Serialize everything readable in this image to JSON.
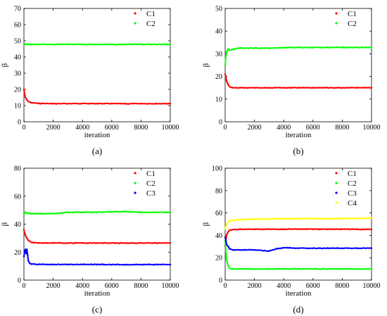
{
  "chart_data": [
    {
      "type": "scatter",
      "caption": "(a)",
      "xlabel": "iteration",
      "ylabel": "β",
      "xlim": [
        0,
        10000
      ],
      "ylim": [
        0,
        70
      ],
      "xticks": [
        0,
        2000,
        4000,
        6000,
        8000,
        10000
      ],
      "yticks": [
        0,
        10,
        20,
        30,
        40,
        50,
        60,
        70
      ],
      "grid": false,
      "legend_position": "top-right",
      "series": [
        {
          "name": "C1",
          "color": "#ff0000",
          "x": [
            0,
            50,
            100,
            200,
            300,
            500,
            1000,
            2000,
            3000,
            4000,
            5000,
            6000,
            7000,
            8000,
            9000,
            10000
          ],
          "y": [
            20,
            17,
            15,
            13.5,
            12.5,
            11.8,
            11.3,
            11.2,
            11.2,
            11.3,
            11.2,
            11.2,
            11.1,
            11.2,
            11.2,
            11.2
          ]
        },
        {
          "name": "C2",
          "color": "#00ff00",
          "x": [
            0,
            50,
            100,
            200,
            500,
            1000,
            2000,
            3000,
            4000,
            5000,
            6000,
            7000,
            8000,
            9000,
            10000
          ],
          "y": [
            47.5,
            47.8,
            48,
            47.8,
            47.7,
            47.8,
            47.8,
            47.9,
            47.8,
            47.8,
            47.8,
            47.8,
            47.8,
            47.8,
            47.8
          ]
        }
      ]
    },
    {
      "type": "scatter",
      "caption": "(b)",
      "xlabel": "iteration",
      "ylabel": "β",
      "xlim": [
        0,
        10000
      ],
      "ylim": [
        0,
        50
      ],
      "xticks": [
        0,
        2000,
        4000,
        6000,
        8000,
        10000
      ],
      "yticks": [
        0,
        10,
        20,
        30,
        40,
        50
      ],
      "grid": false,
      "legend_position": "top-right",
      "series": [
        {
          "name": "C1",
          "color": "#ff0000",
          "x": [
            0,
            50,
            100,
            200,
            300,
            500,
            1000,
            2000,
            3000,
            4000,
            5000,
            6000,
            7000,
            8000,
            9000,
            10000
          ],
          "y": [
            21,
            19.5,
            18,
            16.5,
            15.5,
            15,
            15,
            15,
            15,
            15,
            15,
            15,
            15,
            15,
            15,
            15
          ]
        },
        {
          "name": "C2",
          "color": "#00ff00",
          "x": [
            0,
            50,
            100,
            200,
            300,
            500,
            1000,
            2000,
            3000,
            4000,
            5000,
            6000,
            7000,
            8000,
            9000,
            10000
          ],
          "y": [
            25,
            29,
            31,
            32,
            31.5,
            32,
            32.5,
            32.5,
            32.5,
            32.7,
            32.8,
            32.8,
            32.8,
            32.8,
            32.8,
            32.8
          ]
        }
      ]
    },
    {
      "type": "scatter",
      "caption": "(c)",
      "xlabel": "iteration",
      "ylabel": "β",
      "xlim": [
        0,
        10000
      ],
      "ylim": [
        0,
        80
      ],
      "xticks": [
        0,
        2000,
        4000,
        6000,
        8000,
        10000
      ],
      "yticks": [
        0,
        20,
        40,
        60,
        80
      ],
      "grid": false,
      "legend_position": "top-right",
      "series": [
        {
          "name": "C1",
          "color": "#ff0000",
          "x": [
            0,
            50,
            100,
            200,
            300,
            500,
            1000,
            2000,
            3000,
            4000,
            5000,
            6000,
            7000,
            8000,
            9000,
            10000
          ],
          "y": [
            36,
            34,
            32,
            30,
            28.5,
            27,
            26.5,
            26.5,
            26.5,
            26.5,
            26.5,
            26.5,
            26.5,
            26.5,
            26.5,
            26.5
          ]
        },
        {
          "name": "C2",
          "color": "#00ff00",
          "x": [
            0,
            50,
            100,
            200,
            500,
            1000,
            2000,
            3000,
            4000,
            5000,
            6000,
            7000,
            8000,
            9000,
            10000
          ],
          "y": [
            47,
            48,
            48.5,
            48,
            47.5,
            47.5,
            47.5,
            48.5,
            48.5,
            48.5,
            48.8,
            49,
            48.5,
            48.5,
            48.5
          ]
        },
        {
          "name": "C3",
          "color": "#0000ff",
          "x": [
            0,
            50,
            100,
            150,
            200,
            250,
            300,
            400,
            500,
            1000,
            2000,
            3000,
            4000,
            5000,
            6000,
            7000,
            8000,
            9000,
            10000
          ],
          "y": [
            17,
            20,
            22,
            19,
            22,
            18,
            14,
            12,
            11.5,
            11.2,
            11.2,
            11.2,
            11.2,
            11.2,
            11.1,
            11.1,
            11.1,
            11.1,
            11.0
          ]
        }
      ]
    },
    {
      "type": "scatter",
      "caption": "(d)",
      "xlabel": "iteration",
      "ylabel": "β",
      "xlim": [
        0,
        10000
      ],
      "ylim": [
        0,
        100
      ],
      "xticks": [
        0,
        2000,
        4000,
        6000,
        8000,
        10000
      ],
      "yticks": [
        0,
        20,
        40,
        60,
        80,
        100
      ],
      "grid": false,
      "legend_position": "top-right",
      "series": [
        {
          "name": "C1",
          "color": "#ff0000",
          "x": [
            0,
            50,
            100,
            200,
            300,
            500,
            1000,
            2000,
            3000,
            4000,
            5000,
            6000,
            7000,
            8000,
            9000,
            10000
          ],
          "y": [
            30,
            35,
            40,
            43,
            44.5,
            45,
            45.5,
            45.5,
            45.5,
            45.5,
            45.5,
            45.5,
            45.5,
            45.5,
            45.3,
            45.3
          ]
        },
        {
          "name": "C2",
          "color": "#00ff00",
          "x": [
            0,
            50,
            100,
            200,
            300,
            500,
            1000,
            2000,
            3000,
            4000,
            5000,
            6000,
            7000,
            8000,
            9000,
            10000
          ],
          "y": [
            35,
            25,
            18,
            13,
            10.5,
            10,
            10,
            10,
            10,
            10,
            10,
            10,
            10,
            10,
            10,
            10
          ]
        },
        {
          "name": "C3",
          "color": "#0000ff",
          "x": [
            0,
            50,
            100,
            200,
            300,
            500,
            1000,
            2000,
            3000,
            3500,
            4000,
            5000,
            6000,
            7000,
            8000,
            9000,
            10000
          ],
          "y": [
            38,
            35,
            32,
            30,
            28,
            27,
            27,
            27,
            26,
            28,
            29,
            28.5,
            28.5,
            28.5,
            28.5,
            28.5,
            28.5
          ]
        },
        {
          "name": "C4",
          "color": "#ffff00",
          "x": [
            0,
            50,
            100,
            200,
            300,
            500,
            1000,
            2000,
            3000,
            4000,
            5000,
            6000,
            7000,
            8000,
            9000,
            10000
          ],
          "y": [
            46,
            48,
            50,
            52,
            53,
            53.5,
            54,
            54.5,
            54.5,
            55,
            55,
            55,
            55,
            55,
            55,
            55.5
          ]
        }
      ]
    }
  ]
}
